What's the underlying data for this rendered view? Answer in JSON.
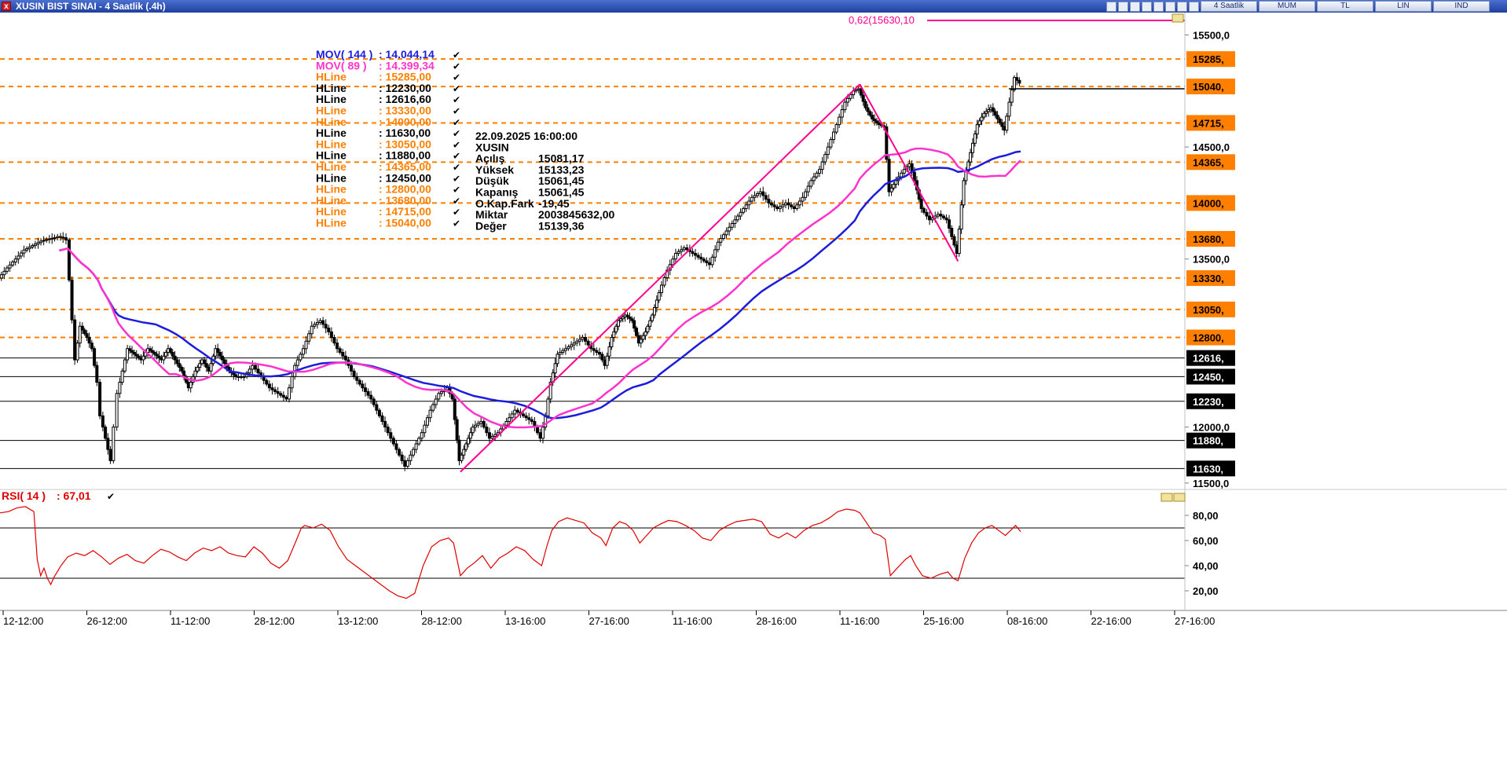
{
  "window": {
    "title": "XUSIN BIST SINAI - 4 Saatlik (.4h)",
    "close_glyph": "x",
    "toolbar_buttons": [
      "4 Saatlik",
      "MUM",
      "TL",
      "LIN",
      "IND"
    ],
    "toolbar_icons": [
      "chart-icon",
      "tools-icon",
      "refresh-icon",
      "settings-icon",
      "link-icon",
      "draw-icon",
      "zoom-icon",
      "pin-icon"
    ]
  },
  "colors": {
    "orange": "#ff8000",
    "black": "#000000",
    "blue": "#1c1cdc",
    "magenta": "#ff33cc",
    "pink": "#ff0090",
    "red": "#e00000"
  },
  "info_box": {
    "datetime": "22.09.2025  16:00:00",
    "symbol": "XUSIN",
    "rows": [
      {
        "label": "Açılış",
        "value": "15081,17"
      },
      {
        "label": "Yüksek",
        "value": "15133,23"
      },
      {
        "label": "Düşük",
        "value": "15061,45"
      },
      {
        "label": "Kapanış",
        "value": "15061,45"
      },
      {
        "label": "O.Kap.Fark",
        "value": "-19,45"
      },
      {
        "label": "Miktar",
        "value": "2003845632,00"
      },
      {
        "label": "Değer",
        "value": "15139,36"
      }
    ]
  },
  "chart_data": [
    {
      "type": "candlestick",
      "panel": "price",
      "yaxis_ticks": [
        "15500,0",
        "14500,0",
        "13500,0",
        "12000,0",
        "11500,0"
      ],
      "ylim": [
        11450,
        15700
      ],
      "x_tick_labels": [
        "12-12:00",
        "26-12:00",
        "11-12:00",
        "28-12:00",
        "13-12:00",
        "28-12:00",
        "13-16:00",
        "27-16:00",
        "11-16:00",
        "28-16:00",
        "11-16:00",
        "25-16:00",
        "08-16:00",
        "22-16:00",
        "27-16:00"
      ],
      "legend": [
        {
          "name": "MOV( 144 )",
          "value": ": 14.044,14",
          "color": "#1c1cdc"
        },
        {
          "name": "MOV( 89 )",
          "value": ": 14.399,34",
          "color": "#ff33cc"
        },
        {
          "name": "HLine",
          "value": ": 15285,00",
          "color": "#ff8000"
        },
        {
          "name": "HLine",
          "value": ": 12230,00",
          "color": "#000000"
        },
        {
          "name": "HLine",
          "value": ": 12616,60",
          "color": "#000000"
        },
        {
          "name": "HLine",
          "value": ": 13330,00",
          "color": "#ff8000"
        },
        {
          "name": "HLine",
          "value": ": 14000,00",
          "color": "#ff8000"
        },
        {
          "name": "HLine",
          "value": ": 11630,00",
          "color": "#000000"
        },
        {
          "name": "HLine",
          "value": ": 13050,00",
          "color": "#ff8000"
        },
        {
          "name": "HLine",
          "value": ": 11880,00",
          "color": "#000000"
        },
        {
          "name": "HLine",
          "value": ": 14365,00",
          "color": "#ff8000"
        },
        {
          "name": "HLine",
          "value": ": 12450,00",
          "color": "#000000"
        },
        {
          "name": "HLine",
          "value": ": 12800,00",
          "color": "#ff8000"
        },
        {
          "name": "HLine",
          "value": ": 13680,00",
          "color": "#ff8000"
        },
        {
          "name": "HLine",
          "value": ": 14715,00",
          "color": "#ff8000"
        },
        {
          "name": "HLine",
          "value": ": 15040,00",
          "color": "#ff8000"
        }
      ],
      "hlines_orange": [
        15285,
        15040,
        14715,
        14365,
        14000,
        13680,
        13330,
        13050,
        12800
      ],
      "hlines_black": [
        12616.6,
        12450,
        12230,
        11880,
        11630
      ],
      "hline_labels": {
        "15285": "15285,",
        "15040": "15040,",
        "14715": "14715,",
        "14365": "14365,",
        "14000": "14000,",
        "13680": "13680,",
        "13330": "13330,",
        "13050": "13050,",
        "12800": "12800,",
        "12616.6": "12616,",
        "12450": "12450,",
        "12230": "12230,",
        "11880": "11880,",
        "11630": "11630,"
      },
      "fib_level": {
        "label": "0,62(15630,10",
        "value": 15630.1
      },
      "price_path": [
        [
          0,
          13330
        ],
        [
          5,
          13420
        ],
        [
          10,
          13500
        ],
        [
          15,
          13580
        ],
        [
          20,
          13620
        ],
        [
          25,
          13660
        ],
        [
          30,
          13680
        ],
        [
          33,
          13690
        ],
        [
          35,
          13700
        ],
        [
          38,
          13690
        ],
        [
          40,
          13670
        ],
        [
          45,
          12600
        ],
        [
          48,
          12900
        ],
        [
          52,
          12800
        ],
        [
          55,
          12700
        ],
        [
          58,
          12400
        ],
        [
          60,
          12100
        ],
        [
          63,
          11900
        ],
        [
          66,
          11700
        ],
        [
          68,
          12000
        ],
        [
          70,
          12300
        ],
        [
          73,
          12500
        ],
        [
          76,
          12700
        ],
        [
          80,
          12650
        ],
        [
          84,
          12600
        ],
        [
          88,
          12700
        ],
        [
          92,
          12650
        ],
        [
          96,
          12600
        ],
        [
          100,
          12700
        ],
        [
          104,
          12600
        ],
        [
          108,
          12500
        ],
        [
          112,
          12350
        ],
        [
          116,
          12500
        ],
        [
          120,
          12600
        ],
        [
          124,
          12500
        ],
        [
          128,
          12700
        ],
        [
          132,
          12600
        ],
        [
          136,
          12500
        ],
        [
          140,
          12450
        ],
        [
          145,
          12450
        ],
        [
          150,
          12550
        ],
        [
          155,
          12450
        ],
        [
          160,
          12350
        ],
        [
          165,
          12300
        ],
        [
          170,
          12250
        ],
        [
          175,
          12550
        ],
        [
          180,
          12700
        ],
        [
          185,
          12900
        ],
        [
          190,
          12950
        ],
        [
          195,
          12850
        ],
        [
          200,
          12700
        ],
        [
          205,
          12600
        ],
        [
          210,
          12450
        ],
        [
          215,
          12350
        ],
        [
          220,
          12250
        ],
        [
          225,
          12100
        ],
        [
          230,
          11950
        ],
        [
          235,
          11800
        ],
        [
          240,
          11650
        ],
        [
          245,
          11800
        ],
        [
          250,
          11950
        ],
        [
          255,
          12150
        ],
        [
          260,
          12300
        ],
        [
          265,
          12350
        ],
        [
          268,
          12250
        ],
        [
          272,
          11700
        ],
        [
          276,
          11850
        ],
        [
          280,
          12000
        ],
        [
          285,
          12050
        ],
        [
          290,
          11900
        ],
        [
          295,
          11950
        ],
        [
          300,
          12050
        ],
        [
          305,
          12150
        ],
        [
          310,
          12100
        ],
        [
          315,
          12050
        ],
        [
          320,
          11900
        ],
        [
          323,
          12100
        ],
        [
          326,
          12400
        ],
        [
          330,
          12650
        ],
        [
          335,
          12700
        ],
        [
          340,
          12750
        ],
        [
          345,
          12800
        ],
        [
          350,
          12700
        ],
        [
          355,
          12650
        ],
        [
          358,
          12550
        ],
        [
          362,
          12800
        ],
        [
          366,
          12950
        ],
        [
          370,
          13000
        ],
        [
          374,
          12950
        ],
        [
          378,
          12750
        ],
        [
          382,
          12850
        ],
        [
          386,
          13000
        ],
        [
          390,
          13200
        ],
        [
          395,
          13400
        ],
        [
          400,
          13550
        ],
        [
          405,
          13600
        ],
        [
          410,
          13550
        ],
        [
          415,
          13500
        ],
        [
          420,
          13450
        ],
        [
          425,
          13650
        ],
        [
          430,
          13750
        ],
        [
          435,
          13850
        ],
        [
          440,
          13950
        ],
        [
          445,
          14050
        ],
        [
          450,
          14100
        ],
        [
          455,
          14000
        ],
        [
          460,
          13950
        ],
        [
          465,
          14000
        ],
        [
          470,
          13950
        ],
        [
          475,
          14050
        ],
        [
          480,
          14200
        ],
        [
          485,
          14300
        ],
        [
          490,
          14500
        ],
        [
          495,
          14700
        ],
        [
          500,
          14900
        ],
        [
          505,
          15000
        ],
        [
          508,
          15020
        ],
        [
          512,
          14850
        ],
        [
          516,
          14750
        ],
        [
          520,
          14700
        ],
        [
          523,
          14680
        ],
        [
          526,
          14100
        ],
        [
          530,
          14200
        ],
        [
          535,
          14300
        ],
        [
          538,
          14350
        ],
        [
          541,
          14200
        ],
        [
          545,
          13950
        ],
        [
          550,
          13850
        ],
        [
          555,
          13900
        ],
        [
          560,
          13850
        ],
        [
          563,
          13700
        ],
        [
          566,
          13550
        ],
        [
          570,
          14200
        ],
        [
          574,
          14450
        ],
        [
          578,
          14700
        ],
        [
          582,
          14800
        ],
        [
          586,
          14850
        ],
        [
          590,
          14750
        ],
        [
          594,
          14650
        ],
        [
          597,
          14900
        ],
        [
          600,
          15120
        ],
        [
          603,
          15070
        ]
      ]
    },
    {
      "type": "line",
      "panel": "RSI",
      "legend": [
        {
          "name": "RSI( 14 )",
          "value": ": 67,01",
          "color": "#e00000"
        }
      ],
      "yaxis_ticks": [
        "80,00",
        "60,00",
        "40,00",
        "20,00"
      ],
      "ylim": [
        5,
        100
      ],
      "levels": [
        70,
        30
      ],
      "values": [
        [
          0,
          82
        ],
        [
          5,
          83
        ],
        [
          10,
          86
        ],
        [
          15,
          87
        ],
        [
          20,
          83
        ],
        [
          22,
          45
        ],
        [
          24,
          32
        ],
        [
          26,
          38
        ],
        [
          28,
          30
        ],
        [
          30,
          25
        ],
        [
          32,
          31
        ],
        [
          36,
          40
        ],
        [
          40,
          47
        ],
        [
          45,
          50
        ],
        [
          50,
          48
        ],
        [
          55,
          52
        ],
        [
          60,
          47
        ],
        [
          65,
          41
        ],
        [
          70,
          46
        ],
        [
          75,
          49
        ],
        [
          80,
          44
        ],
        [
          85,
          42
        ],
        [
          90,
          48
        ],
        [
          95,
          53
        ],
        [
          100,
          51
        ],
        [
          105,
          47
        ],
        [
          110,
          44
        ],
        [
          115,
          50
        ],
        [
          120,
          54
        ],
        [
          125,
          52
        ],
        [
          130,
          55
        ],
        [
          135,
          50
        ],
        [
          140,
          48
        ],
        [
          145,
          47
        ],
        [
          150,
          55
        ],
        [
          155,
          50
        ],
        [
          160,
          42
        ],
        [
          165,
          38
        ],
        [
          170,
          44
        ],
        [
          175,
          60
        ],
        [
          178,
          70
        ],
        [
          180,
          72
        ],
        [
          185,
          70
        ],
        [
          190,
          73
        ],
        [
          195,
          68
        ],
        [
          200,
          55
        ],
        [
          205,
          45
        ],
        [
          210,
          40
        ],
        [
          215,
          35
        ],
        [
          220,
          30
        ],
        [
          225,
          25
        ],
        [
          230,
          20
        ],
        [
          235,
          16
        ],
        [
          240,
          14
        ],
        [
          245,
          18
        ],
        [
          250,
          40
        ],
        [
          255,
          55
        ],
        [
          260,
          60
        ],
        [
          265,
          62
        ],
        [
          268,
          58
        ],
        [
          272,
          32
        ],
        [
          276,
          38
        ],
        [
          280,
          42
        ],
        [
          285,
          48
        ],
        [
          290,
          38
        ],
        [
          295,
          46
        ],
        [
          300,
          50
        ],
        [
          305,
          55
        ],
        [
          310,
          52
        ],
        [
          315,
          45
        ],
        [
          320,
          40
        ],
        [
          323,
          55
        ],
        [
          326,
          68
        ],
        [
          330,
          75
        ],
        [
          335,
          78
        ],
        [
          340,
          76
        ],
        [
          345,
          74
        ],
        [
          350,
          66
        ],
        [
          355,
          62
        ],
        [
          358,
          56
        ],
        [
          362,
          70
        ],
        [
          366,
          75
        ],
        [
          370,
          73
        ],
        [
          374,
          68
        ],
        [
          378,
          58
        ],
        [
          382,
          64
        ],
        [
          386,
          70
        ],
        [
          390,
          73
        ],
        [
          395,
          76
        ],
        [
          400,
          75
        ],
        [
          405,
          72
        ],
        [
          410,
          68
        ],
        [
          415,
          62
        ],
        [
          420,
          60
        ],
        [
          425,
          68
        ],
        [
          430,
          72
        ],
        [
          435,
          75
        ],
        [
          440,
          76
        ],
        [
          445,
          77
        ],
        [
          450,
          75
        ],
        [
          455,
          65
        ],
        [
          460,
          62
        ],
        [
          465,
          66
        ],
        [
          470,
          62
        ],
        [
          475,
          68
        ],
        [
          480,
          72
        ],
        [
          485,
          74
        ],
        [
          490,
          78
        ],
        [
          495,
          83
        ],
        [
          500,
          85
        ],
        [
          505,
          84
        ],
        [
          508,
          82
        ],
        [
          512,
          74
        ],
        [
          516,
          66
        ],
        [
          520,
          64
        ],
        [
          523,
          61
        ],
        [
          526,
          32
        ],
        [
          530,
          38
        ],
        [
          535,
          45
        ],
        [
          538,
          48
        ],
        [
          541,
          40
        ],
        [
          545,
          32
        ],
        [
          550,
          30
        ],
        [
          555,
          33
        ],
        [
          560,
          35
        ],
        [
          563,
          30
        ],
        [
          566,
          28
        ],
        [
          570,
          46
        ],
        [
          574,
          58
        ],
        [
          578,
          66
        ],
        [
          582,
          70
        ],
        [
          586,
          72
        ],
        [
          590,
          68
        ],
        [
          594,
          64
        ],
        [
          597,
          68
        ],
        [
          600,
          72
        ],
        [
          603,
          67
        ]
      ]
    }
  ]
}
